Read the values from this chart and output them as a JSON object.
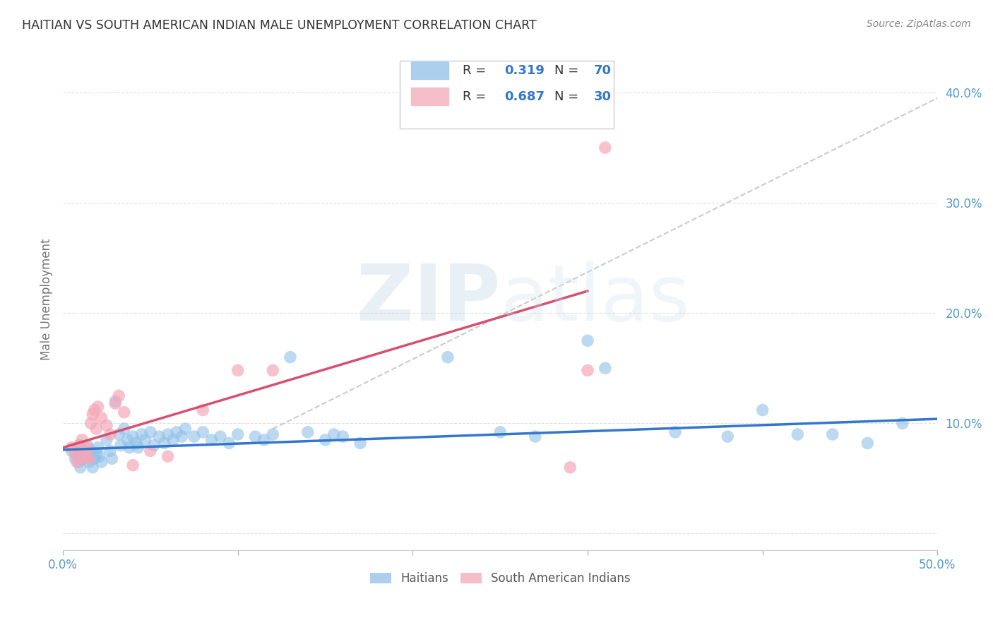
{
  "title": "HAITIAN VS SOUTH AMERICAN INDIAN MALE UNEMPLOYMENT CORRELATION CHART",
  "source": "Source: ZipAtlas.com",
  "ylabel": "Male Unemployment",
  "yticks": [
    0.0,
    0.1,
    0.2,
    0.3,
    0.4
  ],
  "ytick_labels": [
    "",
    "10.0%",
    "20.0%",
    "30.0%",
    "40.0%"
  ],
  "xlim": [
    0.0,
    0.5
  ],
  "ylim": [
    -0.015,
    0.44
  ],
  "r_blue": 0.319,
  "n_blue": 70,
  "r_pink": 0.687,
  "n_pink": 30,
  "blue_scatter": [
    [
      0.005,
      0.075
    ],
    [
      0.007,
      0.068
    ],
    [
      0.008,
      0.072
    ],
    [
      0.009,
      0.065
    ],
    [
      0.01,
      0.08
    ],
    [
      0.01,
      0.07
    ],
    [
      0.01,
      0.06
    ],
    [
      0.011,
      0.075
    ],
    [
      0.012,
      0.068
    ],
    [
      0.013,
      0.072
    ],
    [
      0.014,
      0.08
    ],
    [
      0.015,
      0.07
    ],
    [
      0.015,
      0.065
    ],
    [
      0.016,
      0.075
    ],
    [
      0.017,
      0.06
    ],
    [
      0.018,
      0.068
    ],
    [
      0.019,
      0.072
    ],
    [
      0.02,
      0.078
    ],
    [
      0.021,
      0.07
    ],
    [
      0.022,
      0.065
    ],
    [
      0.025,
      0.085
    ],
    [
      0.027,
      0.075
    ],
    [
      0.028,
      0.068
    ],
    [
      0.03,
      0.12
    ],
    [
      0.032,
      0.09
    ],
    [
      0.033,
      0.08
    ],
    [
      0.035,
      0.095
    ],
    [
      0.037,
      0.085
    ],
    [
      0.038,
      0.078
    ],
    [
      0.04,
      0.088
    ],
    [
      0.042,
      0.082
    ],
    [
      0.043,
      0.078
    ],
    [
      0.045,
      0.09
    ],
    [
      0.047,
      0.085
    ],
    [
      0.05,
      0.092
    ],
    [
      0.052,
      0.08
    ],
    [
      0.055,
      0.088
    ],
    [
      0.058,
      0.082
    ],
    [
      0.06,
      0.09
    ],
    [
      0.063,
      0.085
    ],
    [
      0.065,
      0.092
    ],
    [
      0.068,
      0.088
    ],
    [
      0.07,
      0.095
    ],
    [
      0.075,
      0.088
    ],
    [
      0.08,
      0.092
    ],
    [
      0.085,
      0.085
    ],
    [
      0.09,
      0.088
    ],
    [
      0.095,
      0.082
    ],
    [
      0.1,
      0.09
    ],
    [
      0.11,
      0.088
    ],
    [
      0.115,
      0.085
    ],
    [
      0.12,
      0.09
    ],
    [
      0.13,
      0.16
    ],
    [
      0.14,
      0.092
    ],
    [
      0.15,
      0.085
    ],
    [
      0.155,
      0.09
    ],
    [
      0.16,
      0.088
    ],
    [
      0.17,
      0.082
    ],
    [
      0.22,
      0.16
    ],
    [
      0.25,
      0.092
    ],
    [
      0.27,
      0.088
    ],
    [
      0.3,
      0.175
    ],
    [
      0.31,
      0.15
    ],
    [
      0.35,
      0.092
    ],
    [
      0.38,
      0.088
    ],
    [
      0.4,
      0.112
    ],
    [
      0.42,
      0.09
    ],
    [
      0.44,
      0.09
    ],
    [
      0.46,
      0.082
    ],
    [
      0.48,
      0.1
    ]
  ],
  "pink_scatter": [
    [
      0.005,
      0.078
    ],
    [
      0.007,
      0.072
    ],
    [
      0.008,
      0.065
    ],
    [
      0.009,
      0.08
    ],
    [
      0.01,
      0.068
    ],
    [
      0.011,
      0.085
    ],
    [
      0.012,
      0.075
    ],
    [
      0.013,
      0.07
    ],
    [
      0.014,
      0.078
    ],
    [
      0.015,
      0.068
    ],
    [
      0.016,
      0.1
    ],
    [
      0.017,
      0.108
    ],
    [
      0.018,
      0.112
    ],
    [
      0.019,
      0.095
    ],
    [
      0.02,
      0.115
    ],
    [
      0.022,
      0.105
    ],
    [
      0.025,
      0.098
    ],
    [
      0.027,
      0.09
    ],
    [
      0.03,
      0.118
    ],
    [
      0.032,
      0.125
    ],
    [
      0.035,
      0.11
    ],
    [
      0.04,
      0.062
    ],
    [
      0.05,
      0.075
    ],
    [
      0.06,
      0.07
    ],
    [
      0.08,
      0.112
    ],
    [
      0.1,
      0.148
    ],
    [
      0.12,
      0.148
    ],
    [
      0.3,
      0.148
    ],
    [
      0.31,
      0.35
    ],
    [
      0.29,
      0.06
    ]
  ],
  "blue_line_x": [
    0.0,
    0.5
  ],
  "blue_line_y": [
    0.076,
    0.104
  ],
  "pink_line_x": [
    0.0,
    0.3
  ],
  "pink_line_y": [
    0.078,
    0.22
  ],
  "dashed_line_x": [
    0.12,
    0.5
  ],
  "dashed_line_y": [
    0.095,
    0.395
  ],
  "bg_color": "#ffffff",
  "grid_color": "#dddddd",
  "blue_color": "#90c0e8",
  "pink_color": "#f4a8b8",
  "blue_line_color": "#3377cc",
  "pink_line_color": "#d65070",
  "dashed_line_color": "#cccccc",
  "title_color": "#333333",
  "source_color": "#888888",
  "axis_label_color": "#5599cc",
  "legend_box_color": "#eeeeee",
  "legend_border_color": "#cccccc"
}
